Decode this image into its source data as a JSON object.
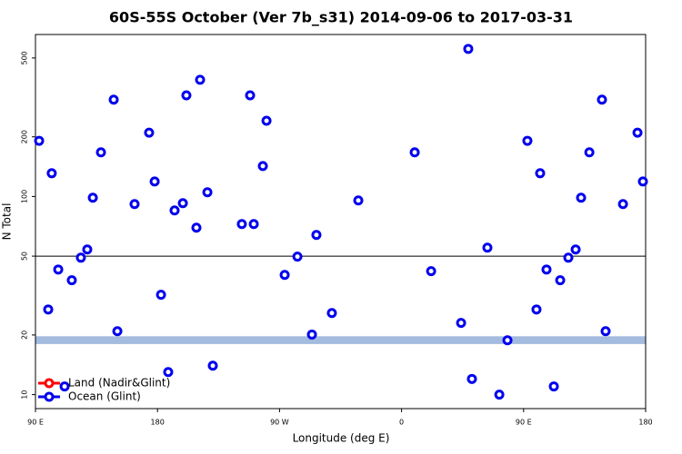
{
  "chart_data": {
    "type": "scatter",
    "title": "60S-55S October (Ver 7b_s31)   2014-09-06 to 2017-03-31",
    "x_label": "Longitude (deg E)",
    "y_label": "N Total",
    "xlim": [
      90,
      540
    ],
    "ylim": [
      8.5,
      657
    ],
    "ylog": true,
    "xticks": [
      {
        "value": 90,
        "label": "90 E"
      },
      180,
      {
        "value": 270,
        "label": "90 W"
      },
      {
        "value": 360,
        "label": "0"
      },
      {
        "value": 450,
        "label": "90 E"
      },
      {
        "value": 540,
        "label": "180"
      }
    ],
    "yticks": [
      10,
      20,
      50,
      100,
      200,
      500
    ],
    "hline": 50,
    "band": [
      18,
      19.7
    ],
    "band_color": "#a3bbdf",
    "legend": "bottom-left",
    "series": [
      {
        "name": "Land (Nadir&Glint)",
        "color": "#ff0000",
        "x": [],
        "values": []
      },
      {
        "name": "Ocean (Glint)",
        "color": "#0000ee",
        "x": [
          92.7,
          102,
          99.4,
          106.8,
          111.5,
          116.8,
          123.5,
          128.2,
          132.3,
          138.3,
          147.7,
          150.4,
          163.1,
          173.8,
          177.9,
          182.6,
          187.9,
          192.6,
          198.7,
          201.3,
          208.7,
          211.4,
          216.8,
          220.8,
          242.2,
          248.3,
          251,
          257.7,
          260.4,
          273.8,
          283.2,
          293.9,
          297.2,
          308.6,
          328.1,
          369.7,
          381.8,
          403.9,
          409.2,
          411.9,
          423.3,
          432.1,
          438.1,
          452.8,
          459.5,
          462.2,
          466.9,
          472.3,
          477,
          483,
          488.4,
          492.4,
          498.5,
          507.8,
          510.5,
          523.3,
          534,
          538
        ],
        "values": [
          191,
          131,
          26.9,
          42.8,
          11,
          37.8,
          49.1,
          54,
          98.6,
          167,
          308,
          20.9,
          91.6,
          210,
          119,
          31.9,
          13,
          85,
          92.5,
          324,
          69.6,
          388,
          105,
          14,
          72.6,
          324,
          72.6,
          142.5,
          241,
          40.2,
          49.7,
          20.1,
          64,
          25.8,
          95.5,
          167,
          42,
          23,
          556,
          12,
          55.2,
          10,
          18.8,
          191,
          26.9,
          131,
          42.8,
          11,
          37.8,
          49.1,
          54,
          98.6,
          167,
          308,
          20.9,
          91.6,
          210,
          119
        ]
      }
    ]
  }
}
